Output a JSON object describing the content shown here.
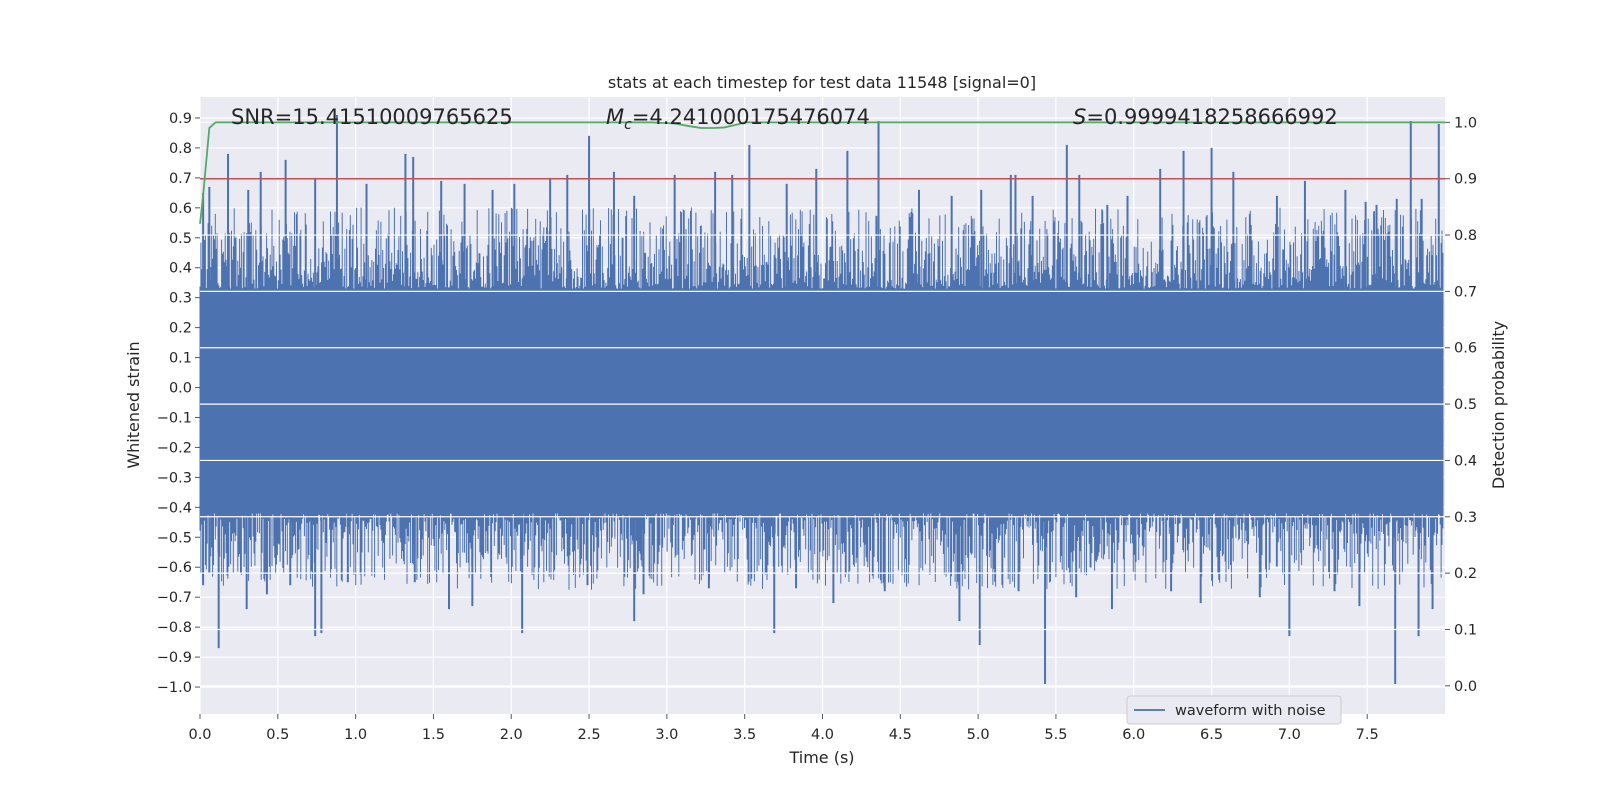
{
  "chart_data": {
    "type": "line",
    "title": "stats at each timestep for test data 11548 [signal=0]",
    "xlabel": "Time (s)",
    "ylabel": "Whitened strain",
    "y2label": "Detection probability",
    "xlim": [
      0.0,
      8.0
    ],
    "ylim": [
      -1.09,
      0.97
    ],
    "y2lim": [
      -0.05,
      1.045
    ],
    "xticks": [
      0.0,
      0.5,
      1.0,
      1.5,
      2.0,
      2.5,
      3.0,
      3.5,
      4.0,
      4.5,
      5.0,
      5.5,
      6.0,
      6.5,
      7.0,
      7.5
    ],
    "xtick_labels": [
      "0.0",
      "0.5",
      "1.0",
      "1.5",
      "2.0",
      "2.5",
      "3.0",
      "3.5",
      "4.0",
      "4.5",
      "5.0",
      "5.5",
      "6.0",
      "6.5",
      "7.0",
      "7.5"
    ],
    "yticks": [
      0.9,
      0.8,
      0.7,
      0.6,
      0.5,
      0.4,
      0.3,
      0.2,
      0.1,
      0.0,
      -0.1,
      -0.2,
      -0.3,
      -0.4,
      -0.5,
      -0.6,
      -0.7,
      -0.8,
      -0.9,
      -1.0
    ],
    "ytick_labels": [
      "0.9",
      "0.8",
      "0.7",
      "0.6",
      "0.5",
      "0.4",
      "0.3",
      "0.2",
      "0.1",
      "0.0",
      "−0.1",
      "−0.2",
      "−0.3",
      "−0.4",
      "−0.5",
      "−0.6",
      "−0.7",
      "−0.8",
      "−0.9",
      "−1.0"
    ],
    "y2ticks": [
      1.0,
      0.9,
      0.8,
      0.7,
      0.6,
      0.5,
      0.4,
      0.3,
      0.2,
      0.1,
      0.0
    ],
    "y2tick_labels": [
      "1.0",
      "0.9",
      "0.8",
      "0.7",
      "0.6",
      "0.5",
      "0.4",
      "0.3",
      "0.2",
      "0.1",
      "0.0"
    ],
    "grid": true,
    "legend": {
      "placement": "lower-right",
      "entries": [
        {
          "name": "waveform with noise",
          "color": "#4c72b0"
        }
      ]
    },
    "series": [
      {
        "name": "waveform with noise",
        "axis": "left",
        "color": "#4c72b0",
        "x_range": [
          0.0,
          7.99
        ],
        "band": {
          "core_max": 0.33,
          "core_min": -0.42,
          "typical_max": 0.5,
          "typical_min": -0.58
        },
        "positive_peaks": [
          {
            "x": 0.02,
            "y": 0.65
          },
          {
            "x": 0.06,
            "y": 0.67
          },
          {
            "x": 0.18,
            "y": 0.78
          },
          {
            "x": 0.31,
            "y": 0.66
          },
          {
            "x": 0.39,
            "y": 0.72
          },
          {
            "x": 0.55,
            "y": 0.76
          },
          {
            "x": 0.74,
            "y": 0.7
          },
          {
            "x": 0.88,
            "y": 0.91
          },
          {
            "x": 1.07,
            "y": 0.68
          },
          {
            "x": 1.32,
            "y": 0.78
          },
          {
            "x": 1.37,
            "y": 0.77
          },
          {
            "x": 1.55,
            "y": 0.69
          },
          {
            "x": 1.7,
            "y": 0.68
          },
          {
            "x": 1.88,
            "y": 0.66
          },
          {
            "x": 2.02,
            "y": 0.68
          },
          {
            "x": 2.25,
            "y": 0.7
          },
          {
            "x": 2.36,
            "y": 0.71
          },
          {
            "x": 2.5,
            "y": 0.84
          },
          {
            "x": 2.66,
            "y": 0.72
          },
          {
            "x": 2.79,
            "y": 0.64
          },
          {
            "x": 3.05,
            "y": 0.71
          },
          {
            "x": 3.31,
            "y": 0.72
          },
          {
            "x": 3.42,
            "y": 0.71
          },
          {
            "x": 3.53,
            "y": 0.81
          },
          {
            "x": 3.77,
            "y": 0.68
          },
          {
            "x": 3.96,
            "y": 0.73
          },
          {
            "x": 4.16,
            "y": 0.79
          },
          {
            "x": 4.36,
            "y": 0.89
          },
          {
            "x": 4.62,
            "y": 0.66
          },
          {
            "x": 4.83,
            "y": 0.64
          },
          {
            "x": 5.02,
            "y": 0.66
          },
          {
            "x": 5.21,
            "y": 0.71
          },
          {
            "x": 5.24,
            "y": 0.71
          },
          {
            "x": 5.35,
            "y": 0.64
          },
          {
            "x": 5.57,
            "y": 0.81
          },
          {
            "x": 5.65,
            "y": 0.71
          },
          {
            "x": 5.83,
            "y": 0.61
          },
          {
            "x": 5.96,
            "y": 0.64
          },
          {
            "x": 6.17,
            "y": 0.73
          },
          {
            "x": 6.32,
            "y": 0.79
          },
          {
            "x": 6.5,
            "y": 0.8
          },
          {
            "x": 6.64,
            "y": 0.72
          },
          {
            "x": 6.92,
            "y": 0.64
          },
          {
            "x": 7.1,
            "y": 0.69
          },
          {
            "x": 7.36,
            "y": 0.66
          },
          {
            "x": 7.49,
            "y": 0.62
          },
          {
            "x": 7.56,
            "y": 0.61
          },
          {
            "x": 7.69,
            "y": 0.63
          },
          {
            "x": 7.78,
            "y": 0.89
          },
          {
            "x": 7.85,
            "y": 0.63
          },
          {
            "x": 7.96,
            "y": 0.88
          }
        ],
        "negative_peaks": [
          {
            "x": 0.02,
            "y": -0.66
          },
          {
            "x": 0.06,
            "y": -0.62
          },
          {
            "x": 0.12,
            "y": -0.87
          },
          {
            "x": 0.3,
            "y": -0.74
          },
          {
            "x": 0.43,
            "y": -0.69
          },
          {
            "x": 0.58,
            "y": -0.66
          },
          {
            "x": 0.74,
            "y": -0.83
          },
          {
            "x": 0.78,
            "y": -0.82
          },
          {
            "x": 0.95,
            "y": -0.65
          },
          {
            "x": 1.38,
            "y": -0.65
          },
          {
            "x": 1.6,
            "y": -0.74
          },
          {
            "x": 1.75,
            "y": -0.73
          },
          {
            "x": 2.07,
            "y": -0.82
          },
          {
            "x": 2.49,
            "y": -0.66
          },
          {
            "x": 2.79,
            "y": -0.78
          },
          {
            "x": 2.85,
            "y": -0.69
          },
          {
            "x": 3.27,
            "y": -0.67
          },
          {
            "x": 3.69,
            "y": -0.82
          },
          {
            "x": 3.83,
            "y": -0.67
          },
          {
            "x": 4.07,
            "y": -0.72
          },
          {
            "x": 4.4,
            "y": -0.68
          },
          {
            "x": 4.88,
            "y": -0.78
          },
          {
            "x": 5.01,
            "y": -0.86
          },
          {
            "x": 5.26,
            "y": -0.68
          },
          {
            "x": 5.43,
            "y": -0.99
          },
          {
            "x": 5.63,
            "y": -0.7
          },
          {
            "x": 5.86,
            "y": -0.74
          },
          {
            "x": 6.24,
            "y": -0.68
          },
          {
            "x": 6.43,
            "y": -0.72
          },
          {
            "x": 6.81,
            "y": -0.7
          },
          {
            "x": 7.0,
            "y": -0.83
          },
          {
            "x": 7.29,
            "y": -0.68
          },
          {
            "x": 7.45,
            "y": -0.73
          },
          {
            "x": 7.68,
            "y": -0.99
          },
          {
            "x": 7.83,
            "y": -0.83
          },
          {
            "x": 7.92,
            "y": -0.74
          }
        ]
      },
      {
        "name": "detection probability",
        "axis": "right",
        "color": "#55a868",
        "x": [
          0.0,
          0.02,
          0.04,
          0.06,
          0.1,
          0.2,
          2.6,
          2.9,
          3.05,
          3.15,
          3.22,
          3.3,
          3.37,
          3.45,
          3.5,
          3.6,
          8.0
        ],
        "y": [
          0.82,
          0.87,
          0.93,
          0.99,
          1.0,
          1.0,
          1.0,
          1.0,
          0.998,
          0.993,
          0.99,
          0.99,
          0.991,
          0.996,
          1.0,
          1.0,
          1.0
        ]
      },
      {
        "name": "threshold",
        "axis": "right",
        "color": "#c44e52",
        "x": [
          0.0,
          8.0
        ],
        "y": [
          0.9,
          0.9
        ]
      }
    ],
    "annotations": {
      "snr": "SNR=15.41510009765625",
      "mc_symbol": "M",
      "mc_subscript": "c",
      "mc_value": "=4.241000175476074",
      "s_symbol": "S",
      "s_value": "=0.9999418258666992"
    }
  }
}
